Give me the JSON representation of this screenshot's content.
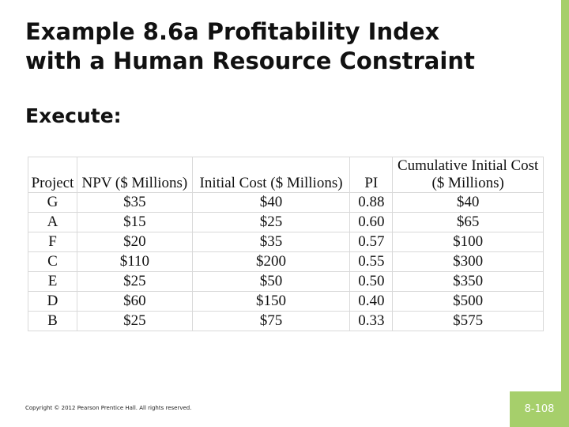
{
  "title": {
    "line1": "Example 8.6a Profitability Index",
    "line2": "with a Human Resource Constraint"
  },
  "subtitle": "Execute:",
  "table": {
    "header": [
      "Project",
      "NPV ($ Millions)",
      "Initial Cost ($ Millions)",
      "PI",
      "Cumulative Initial Cost ($ Millions)"
    ],
    "rows": [
      [
        "G",
        "$35",
        "$40",
        "0.88",
        "$40"
      ],
      [
        "A",
        "$15",
        "$25",
        "0.60",
        "$65"
      ],
      [
        "F",
        "$20",
        "$35",
        "0.57",
        "$100"
      ],
      [
        "C",
        "$110",
        "$200",
        "0.55",
        "$300"
      ],
      [
        "E",
        "$25",
        "$50",
        "0.50",
        "$350"
      ],
      [
        "D",
        "$60",
        "$150",
        "0.40",
        "$500"
      ],
      [
        "B",
        "$25",
        "$75",
        "0.33",
        "$575"
      ]
    ]
  },
  "footer": {
    "copyright": "Copyright © 2012 Pearson Prentice Hall. All rights reserved.",
    "page": "8-108"
  }
}
